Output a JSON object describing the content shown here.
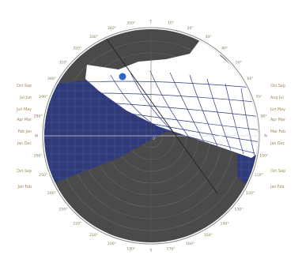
{
  "diagram": {
    "colors": {
      "dial_background": "#4a4a4a",
      "ring_lines": "#6a6a6a",
      "obstruction": "#ffffff",
      "sun_path_band": "#2e3a7a",
      "sun_marker": "#2f64c8",
      "outer_circle": "#8a8a8a",
      "label_color": "#8a7a55"
    },
    "compass_labels": [
      "10°",
      "20°",
      "30°",
      "40°",
      "50°",
      "60°",
      "70°",
      "80°",
      "N",
      "100°",
      "110°",
      "120°",
      "130°",
      "140°",
      "150°",
      "160°",
      "170°",
      "S",
      "190°",
      "200°",
      "210°",
      "220°",
      "230°",
      "240°",
      "250°",
      "260°",
      "W",
      "280°",
      "290°",
      "300°",
      "310°",
      "320°",
      "330°",
      "340°",
      "350°",
      "E"
    ],
    "side_labels_left": [
      "Oct Sep",
      "Jul Jun",
      "Jun May",
      "Apr Mar",
      "Feb Jan",
      "Jan Dec",
      "Oct Sep",
      "Jan Feb"
    ],
    "side_labels_right": [
      "Oct Sep",
      "Aug Jul",
      "Jun May",
      "Apr Mar",
      "Mar Feb",
      "Jan Dec",
      "Oct Sep",
      "Jan Feb"
    ],
    "center_label": "0°"
  }
}
